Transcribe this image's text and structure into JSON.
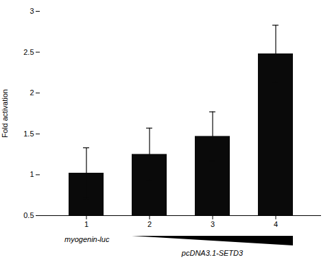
{
  "chart_data": {
    "type": "bar",
    "categories": [
      "1",
      "2",
      "3",
      "4"
    ],
    "values": [
      1.02,
      1.25,
      1.47,
      2.48
    ],
    "errors": [
      0.31,
      0.32,
      0.3,
      0.35
    ],
    "color": "#0a0a0a",
    "ylim": [
      0.5,
      3.0
    ],
    "yticks": [
      0.5,
      1,
      1.5,
      2,
      2.5,
      3
    ],
    "ylabel": "Fold activation",
    "annotations": [
      "myogenin-luc",
      "pcDNA3.1-SETD3"
    ]
  }
}
